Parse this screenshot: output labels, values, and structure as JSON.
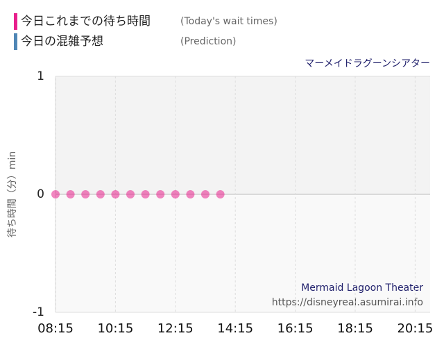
{
  "chart_data": {
    "type": "scatter",
    "title": "マーメイドラグーンシアター",
    "ylabel": "待ち時間（分）min",
    "annotations": [
      "Mermaid Lagoon Theater",
      "https://disneyreal.asumirai.info"
    ],
    "x": [
      "08:15",
      "08:45",
      "09:15",
      "09:45",
      "10:15",
      "10:45",
      "11:15",
      "11:45",
      "12:15",
      "12:45",
      "13:15",
      "13:45"
    ],
    "series": [
      {
        "name": "今日これまでの待ち時間",
        "note": "(Today's wait times)",
        "color": "#e8208c",
        "values": [
          0,
          0,
          0,
          0,
          0,
          0,
          0,
          0,
          0,
          0,
          0,
          0
        ]
      },
      {
        "name": "今日の混雑予想",
        "note": "(Prediction)",
        "color": "#4f86b5",
        "values": [
          null,
          null,
          null,
          null,
          null,
          null,
          null,
          null,
          null,
          null,
          null,
          null
        ]
      }
    ],
    "xlim": [
      "08:15",
      "20:45"
    ],
    "xticks": [
      "08:15",
      "10:15",
      "12:15",
      "14:15",
      "16:15",
      "18:15",
      "20:15"
    ],
    "ylim": [
      -1,
      1
    ],
    "yticks": [
      -1,
      0,
      1
    ],
    "grid": true
  }
}
